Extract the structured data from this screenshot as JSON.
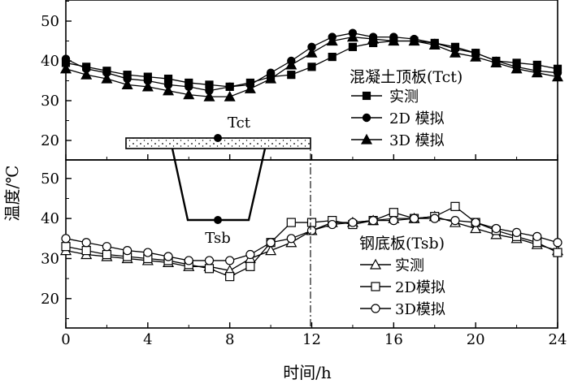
{
  "chart_data": {
    "type": "line",
    "xlabel": "时间/h",
    "ylabel": "温度/℃",
    "xlim": [
      0,
      24
    ],
    "xticks": [
      0,
      4,
      8,
      12,
      16,
      20,
      24
    ],
    "x": [
      0,
      1,
      2,
      3,
      4,
      5,
      6,
      7,
      8,
      9,
      10,
      11,
      12,
      13,
      14,
      15,
      16,
      17,
      18,
      19,
      20,
      21,
      22,
      23,
      24
    ],
    "panels": [
      {
        "id": "top",
        "ylim": [
          15,
          55
        ],
        "yticks": [
          20,
          30,
          40,
          50
        ],
        "legend_title": "混凝土顶板(Tct)",
        "legend_placement": "right",
        "series": [
          {
            "name": "实测",
            "marker": "square-filled",
            "values": [
              39.5,
              38.5,
              37.5,
              36.5,
              36,
              35.5,
              34.5,
              34,
              33.5,
              34.5,
              36,
              36.5,
              38.5,
              41,
              43.5,
              44.5,
              45,
              45,
              44.5,
              43.5,
              42,
              40,
              39.5,
              39,
              38
            ]
          },
          {
            "name": "2D 模拟",
            "marker": "circle-filled",
            "values": [
              40.5,
              38,
              37,
              35.5,
              35,
              34,
              33.5,
              32.5,
              33.5,
              34,
              37,
              40,
              43.5,
              46,
              47,
              46,
              46,
              45.5,
              44.5,
              43,
              42,
              40,
              38.5,
              37.5,
              37
            ]
          },
          {
            "name": "3D 模拟",
            "marker": "triangle-filled",
            "values": [
              38,
              36.5,
              35.5,
              34,
              33.5,
              32.5,
              31.5,
              31,
              31,
              33,
              35.5,
              39,
              42,
              45,
              46,
              45.5,
              45,
              45,
              44,
              42,
              41,
              39.5,
              38,
              37,
              36
            ]
          }
        ]
      },
      {
        "id": "bottom",
        "ylim": [
          15,
          55
        ],
        "yticks": [
          20,
          30,
          40,
          50
        ],
        "legend_title": "钢底板(Tsb)",
        "legend_placement": "bottom-right",
        "series": [
          {
            "name": "实测",
            "marker": "triangle-open",
            "values": [
              32,
              31,
              30.5,
              30,
              29.5,
              29,
              28,
              28,
              27,
              30,
              32,
              34,
              37,
              39,
              39,
              39.5,
              40,
              40,
              40.5,
              39,
              37.5,
              36,
              35,
              33.5,
              32
            ]
          },
          {
            "name": "2D模拟",
            "marker": "square-open",
            "values": [
              33,
              32,
              31,
              30.5,
              30,
              29.5,
              28.5,
              27.5,
              25.5,
              28,
              34,
              39,
              39,
              39.5,
              38.5,
              39.5,
              41.5,
              40,
              40.5,
              43,
              39,
              37,
              35.5,
              34,
              31.5
            ]
          },
          {
            "name": "3D模拟",
            "marker": "circle-open",
            "values": [
              35,
              34,
              33,
              32,
              31.5,
              30.5,
              29.5,
              29.5,
              29.5,
              31,
              34,
              35,
              37,
              38.5,
              39,
              39.5,
              39.5,
              40,
              40,
              39.5,
              39,
              37.5,
              36.5,
              35.5,
              34
            ]
          }
        ]
      }
    ],
    "annotations": {
      "top_point": "Tct",
      "bottom_point": "Tsb"
    }
  }
}
